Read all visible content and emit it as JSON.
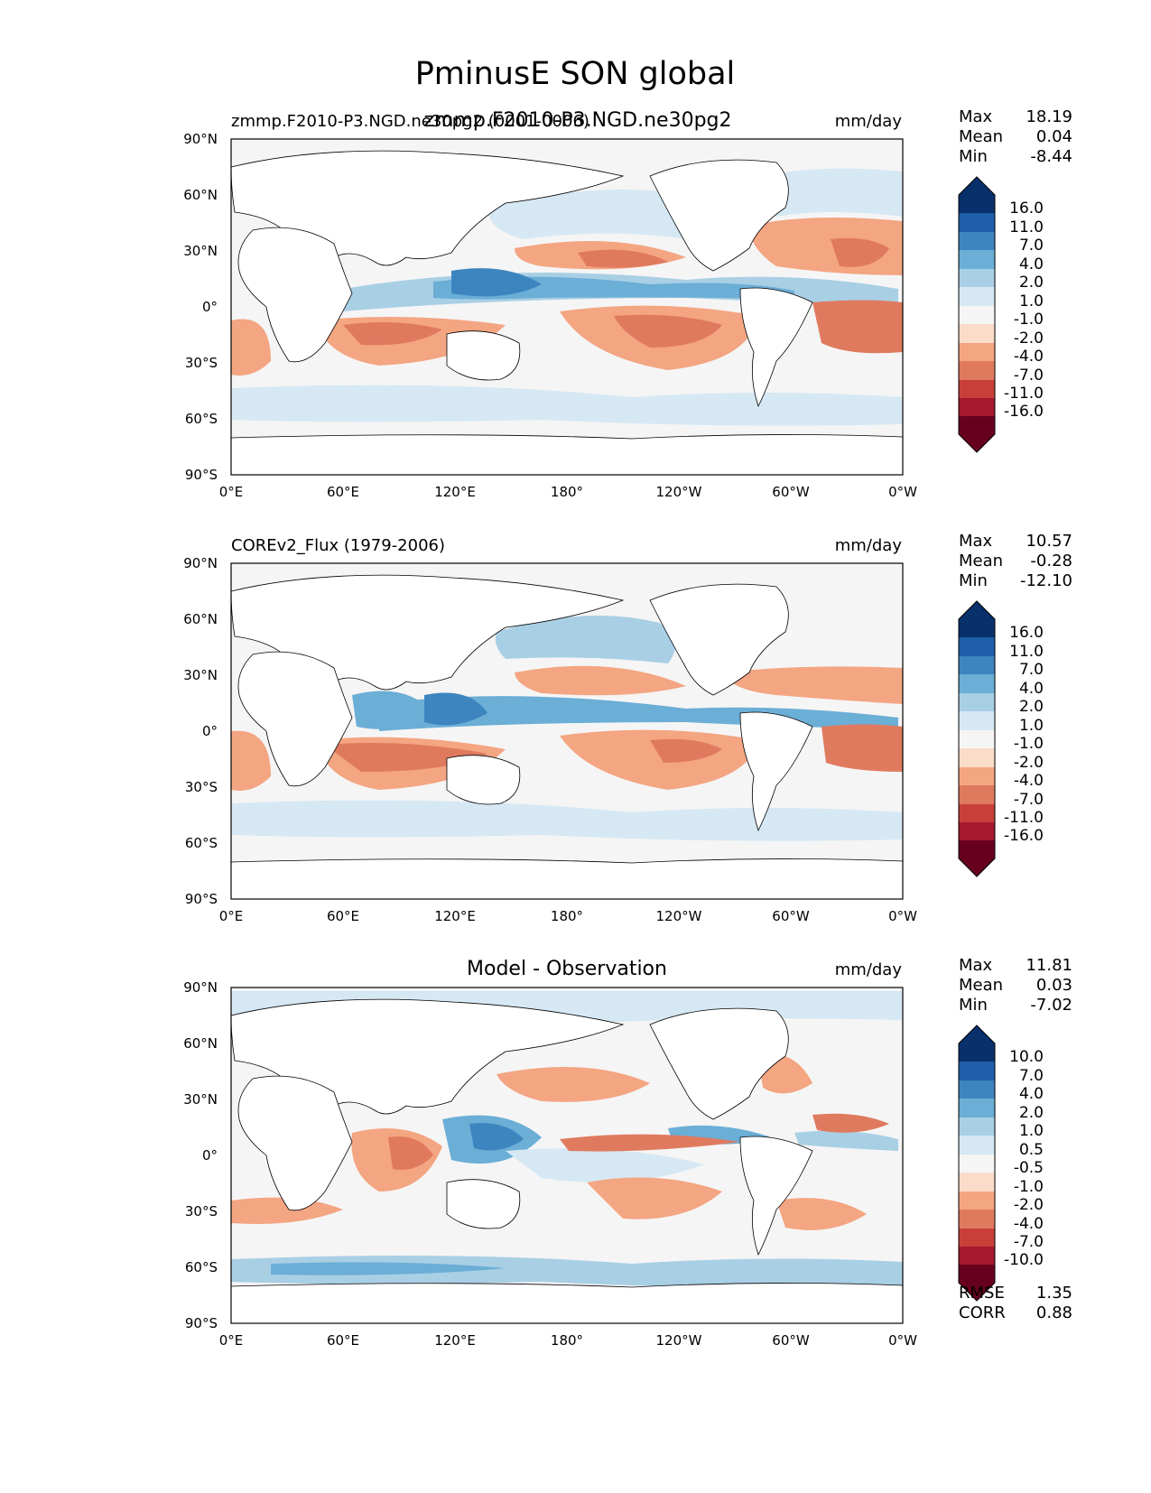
{
  "figure_title": "PminusE SON global",
  "colors": {
    "ocean_default": "#f5f5f5",
    "land": "#ffffff",
    "coast": "#000000",
    "pos1": "#d6e8f3",
    "pos2": "#a9cfe5",
    "pos3": "#6baed6",
    "pos4": "#3d85bf",
    "pos5": "#1f5ea8",
    "pos6": "#08306b",
    "neg1": "#fbdcc9",
    "neg2": "#f4a582",
    "neg3": "#e07a5f",
    "neg4": "#c83f3a",
    "neg5": "#a6192e",
    "neg6": "#67001f"
  },
  "chart_data": [
    {
      "type": "heatmap",
      "id": "test",
      "title_left": "zmmp.F2010-P3.NGD.ne30pg2 (0001-0006)",
      "title_center": "zmmp.F2010-P3.NGD.ne30pg2",
      "units": "mm/day",
      "xticks": [
        "0°E",
        "60°E",
        "120°E",
        "180°",
        "120°W",
        "60°W",
        "0°W"
      ],
      "yticks": [
        "90°N",
        "60°N",
        "30°N",
        "0°",
        "30°S",
        "60°S",
        "90°S"
      ],
      "xlim": [
        0,
        360
      ],
      "ylim": [
        -90,
        90
      ],
      "colorbar_levels": [
        "16.0",
        "11.0",
        "7.0",
        "4.0",
        "2.0",
        "1.0",
        "-1.0",
        "-2.0",
        "-4.0",
        "-7.0",
        "-11.0",
        "-16.0"
      ],
      "stats": [
        {
          "label": "Max",
          "value": "18.19"
        },
        {
          "label": "Mean",
          "value": "0.04"
        },
        {
          "label": "Min",
          "value": "-8.44"
        }
      ]
    },
    {
      "type": "heatmap",
      "id": "ref",
      "title_left": "COREv2_Flux (1979-2006)",
      "title_center": "",
      "units": "mm/day",
      "xticks": [
        "0°E",
        "60°E",
        "120°E",
        "180°",
        "120°W",
        "60°W",
        "0°W"
      ],
      "yticks": [
        "90°N",
        "60°N",
        "30°N",
        "0°",
        "30°S",
        "60°S",
        "90°S"
      ],
      "xlim": [
        0,
        360
      ],
      "ylim": [
        -90,
        90
      ],
      "colorbar_levels": [
        "16.0",
        "11.0",
        "7.0",
        "4.0",
        "2.0",
        "1.0",
        "-1.0",
        "-2.0",
        "-4.0",
        "-7.0",
        "-11.0",
        "-16.0"
      ],
      "stats": [
        {
          "label": "Max",
          "value": "10.57"
        },
        {
          "label": "Mean",
          "value": "-0.28"
        },
        {
          "label": "Min",
          "value": "-12.10"
        }
      ]
    },
    {
      "type": "heatmap",
      "id": "diff",
      "title_left": "",
      "title_center": "Model - Observation",
      "units": "mm/day",
      "xticks": [
        "0°E",
        "60°E",
        "120°E",
        "180°",
        "120°W",
        "60°W",
        "0°W"
      ],
      "yticks": [
        "90°N",
        "60°N",
        "30°N",
        "0°",
        "30°S",
        "60°S",
        "90°S"
      ],
      "xlim": [
        0,
        360
      ],
      "ylim": [
        -90,
        90
      ],
      "colorbar_levels": [
        "10.0",
        "7.0",
        "4.0",
        "2.0",
        "1.0",
        "0.5",
        "-0.5",
        "-1.0",
        "-2.0",
        "-4.0",
        "-7.0",
        "-10.0"
      ],
      "stats": [
        {
          "label": "Max",
          "value": "11.81"
        },
        {
          "label": "Mean",
          "value": "0.03"
        },
        {
          "label": "Min",
          "value": "-7.02"
        }
      ],
      "extra_stats": [
        {
          "label": "RMSE",
          "value": "1.35"
        },
        {
          "label": "CORR",
          "value": "0.88"
        }
      ]
    }
  ]
}
